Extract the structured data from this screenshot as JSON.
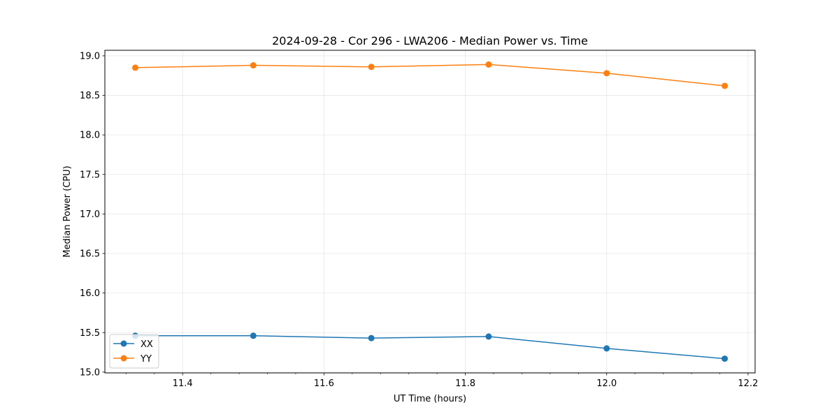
{
  "chart_data": {
    "type": "line",
    "title": "2024-09-28 - Cor 296 - LWA206 - Median Power vs. Time",
    "xlabel": "UT Time (hours)",
    "ylabel": "Median Power (CPU)",
    "xlim": [
      11.29,
      12.21
    ],
    "ylim": [
      14.99,
      19.07
    ],
    "xticks": [
      11.4,
      11.6,
      11.8,
      12.0,
      12.2
    ],
    "xtick_labels": [
      "11.4",
      "11.6",
      "11.8",
      "12.0",
      "12.2"
    ],
    "yticks": [
      15.0,
      15.5,
      16.0,
      16.5,
      17.0,
      17.5,
      18.0,
      18.5,
      19.0
    ],
    "ytick_labels": [
      "15.0",
      "15.5",
      "16.0",
      "16.5",
      "17.0",
      "17.5",
      "18.0",
      "18.5",
      "19.0"
    ],
    "grid": true,
    "legend_position": "lower-left",
    "x": [
      11.333,
      11.5,
      11.667,
      11.833,
      12.0,
      12.167
    ],
    "series": [
      {
        "name": "XX",
        "color": "#1f77b4",
        "values": [
          15.46,
          15.46,
          15.43,
          15.45,
          15.3,
          15.17
        ]
      },
      {
        "name": "YY",
        "color": "#ff7f0e",
        "values": [
          18.85,
          18.88,
          18.86,
          18.89,
          18.78,
          18.62
        ]
      }
    ]
  }
}
